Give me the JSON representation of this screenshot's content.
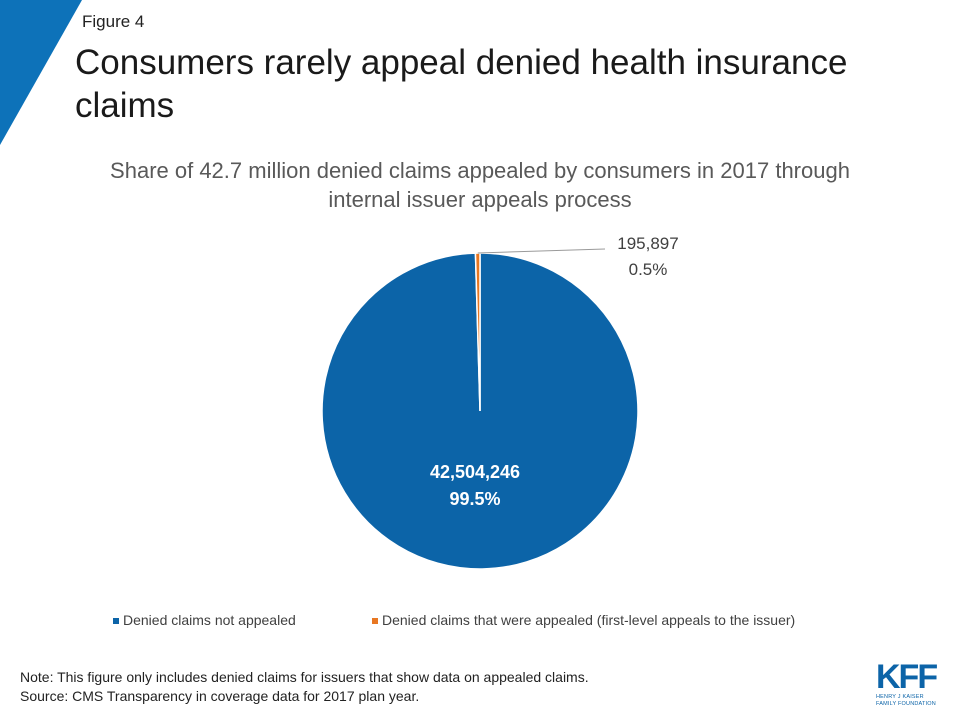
{
  "header": {
    "figure_label": "Figure 4",
    "title": "Consumers rarely appeal denied health insurance claims"
  },
  "chart_data": {
    "type": "pie",
    "title": "Share of 42.7 million denied claims appealed by consumers in 2017 through internal issuer appeals process",
    "slices": [
      {
        "name": "Denied claims not appealed",
        "value": 42504246,
        "percent": 99.5,
        "value_label": "42,504,246",
        "percent_label": "99.5%",
        "color": "#0c64a8"
      },
      {
        "name": "Denied claims that were appealed (first-level appeals to the issuer)",
        "value": 195897,
        "percent": 0.5,
        "value_label": "195,897",
        "percent_label": "0.5%",
        "color": "#e87722"
      }
    ],
    "legend_position": "bottom"
  },
  "footer": {
    "note": "Note: This figure only includes denied claims for issuers that show data on appealed claims.",
    "source": "Source: CMS Transparency  in coverage data for 2017 plan year."
  },
  "logo": {
    "mark": "KFF",
    "line1": "HENRY J KAISER",
    "line2": "FAMILY FOUNDATION"
  },
  "colors": {
    "accent": "#0c64a8",
    "corner": "#0d72b9",
    "slice_small": "#e87722"
  }
}
